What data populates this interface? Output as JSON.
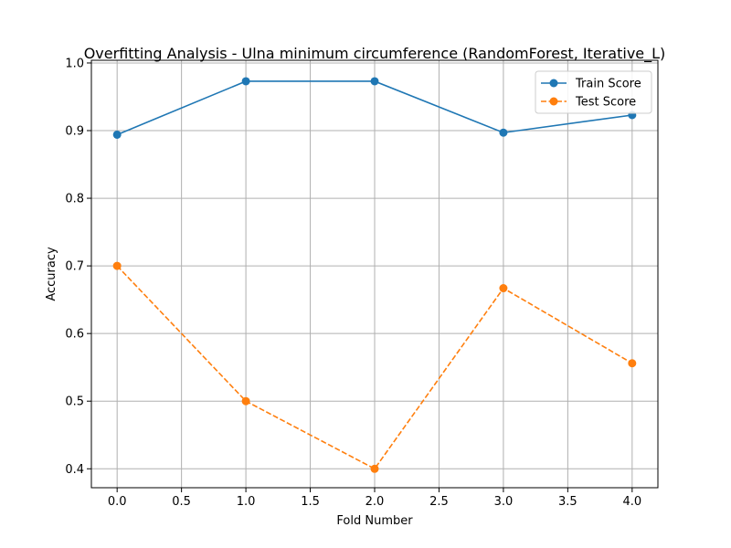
{
  "chart_data": {
    "type": "line",
    "title": "Overfitting Analysis - Ulna minimum circumference (RandomForest, Iterative_L)",
    "xlabel": "Fold Number",
    "ylabel": "Accuracy",
    "x": [
      0,
      1,
      2,
      3,
      4
    ],
    "xlim": [
      -0.2,
      4.2
    ],
    "ylim": [
      0.372,
      1.004
    ],
    "xticks": [
      "0.0",
      "0.5",
      "1.0",
      "1.5",
      "2.0",
      "2.5",
      "3.0",
      "3.5",
      "4.0"
    ],
    "yticks": [
      "0.4",
      "0.5",
      "0.6",
      "0.7",
      "0.8",
      "0.9",
      "1.0"
    ],
    "grid": true,
    "legend_position": "upper right",
    "series": [
      {
        "name": "Train Score",
        "values": [
          0.894,
          0.973,
          0.973,
          0.897,
          0.923
        ],
        "color": "#1f77b4",
        "linestyle": "solid",
        "marker": "circle"
      },
      {
        "name": "Test Score",
        "values": [
          0.7,
          0.5,
          0.4,
          0.667,
          0.556
        ],
        "color": "#ff7f0e",
        "linestyle": "dashed",
        "marker": "circle"
      }
    ]
  }
}
